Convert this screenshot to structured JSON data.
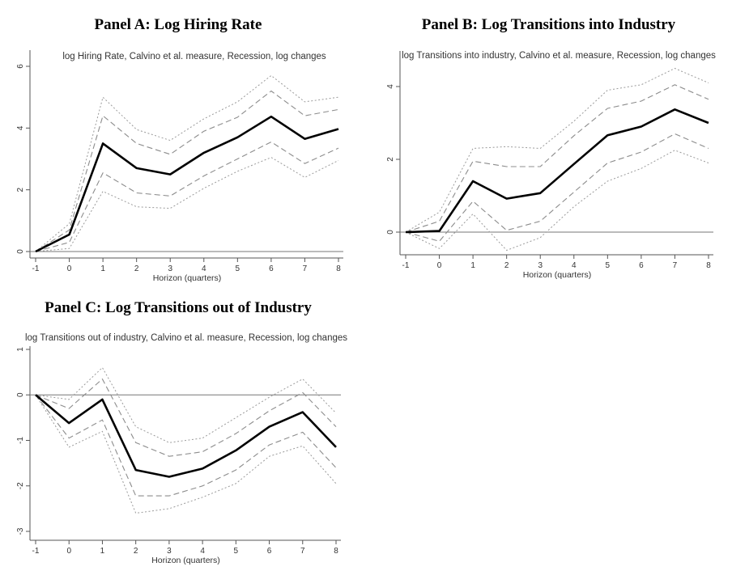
{
  "panel_headings": [
    "Panel A: Log Hiring Rate",
    "Panel B: Log Transitions into Industry",
    "Panel C: Log Transitions out of Industry"
  ],
  "chart_data": [
    {
      "type": "line",
      "title": "log Hiring Rate, Calvino et al. measure, Recession, log changes",
      "xlabel": "Horizon (quarters)",
      "ylabel": "",
      "x": [
        -1,
        0,
        1,
        2,
        3,
        4,
        5,
        6,
        7,
        8
      ],
      "xticks": [
        "-1",
        "0",
        "1",
        "2",
        "3",
        "4",
        "5",
        "6",
        "7",
        "8"
      ],
      "yticks": [
        0,
        2,
        4,
        6
      ],
      "ylim": [
        -0.1,
        6.3
      ],
      "reference_line_y": 0,
      "legend": "none",
      "series": [
        {
          "role": "upper_outer_band",
          "style": "dotted",
          "values": [
            0.0,
            0.9,
            5.0,
            3.95,
            3.6,
            4.3,
            4.85,
            5.7,
            4.85,
            5.0
          ]
        },
        {
          "role": "upper_inner_band",
          "style": "dashed",
          "values": [
            0.0,
            0.7,
            4.4,
            3.5,
            3.15,
            3.9,
            4.35,
            5.2,
            4.4,
            4.6
          ]
        },
        {
          "role": "point_estimate",
          "style": "solid",
          "values": [
            0.0,
            0.55,
            3.5,
            2.7,
            2.5,
            3.2,
            3.7,
            4.37,
            3.65,
            3.97
          ]
        },
        {
          "role": "lower_inner_band",
          "style": "dashed",
          "values": [
            0.0,
            0.3,
            2.55,
            1.9,
            1.8,
            2.45,
            3.0,
            3.55,
            2.85,
            3.35
          ]
        },
        {
          "role": "lower_outer_band",
          "style": "dotted",
          "values": [
            0.0,
            0.1,
            1.95,
            1.45,
            1.4,
            2.05,
            2.6,
            3.05,
            2.4,
            2.95
          ]
        }
      ]
    },
    {
      "type": "line",
      "title": "log Transitions into industry, Calvino et al. measure, Recession, log changes",
      "xlabel": "Horizon (quarters)",
      "ylabel": "",
      "x": [
        -1,
        0,
        1,
        2,
        3,
        4,
        5,
        6,
        7,
        8
      ],
      "xticks": [
        "-1",
        "0",
        "1",
        "2",
        "3",
        "4",
        "5",
        "6",
        "7",
        "8"
      ],
      "yticks": [
        0,
        2,
        4
      ],
      "ylim": [
        -0.7,
        4.7
      ],
      "reference_line_y": 0,
      "legend": "none",
      "series": [
        {
          "role": "upper_outer_band",
          "style": "dotted",
          "values": [
            0.0,
            0.55,
            2.3,
            2.35,
            2.3,
            3.05,
            3.9,
            4.05,
            4.5,
            4.1
          ]
        },
        {
          "role": "upper_inner_band",
          "style": "dashed",
          "values": [
            0.0,
            0.3,
            1.95,
            1.8,
            1.8,
            2.65,
            3.4,
            3.6,
            4.05,
            3.65
          ]
        },
        {
          "role": "point_estimate",
          "style": "solid",
          "values": [
            0.0,
            0.03,
            1.4,
            0.92,
            1.07,
            1.87,
            2.66,
            2.9,
            3.37,
            3.0
          ]
        },
        {
          "role": "lower_inner_band",
          "style": "dashed",
          "values": [
            0.0,
            -0.25,
            0.85,
            0.05,
            0.3,
            1.1,
            1.9,
            2.2,
            2.7,
            2.3
          ]
        },
        {
          "role": "lower_outer_band",
          "style": "dotted",
          "values": [
            0.0,
            -0.45,
            0.5,
            -0.5,
            -0.15,
            0.7,
            1.4,
            1.75,
            2.25,
            1.9
          ]
        }
      ]
    },
    {
      "type": "line",
      "title": "log Transitions out of industry, Calvino et al. measure, Recession, log changes",
      "xlabel": "Horizon (quarters)",
      "ylabel": "",
      "x": [
        -1,
        0,
        1,
        2,
        3,
        4,
        5,
        6,
        7,
        8
      ],
      "xticks": [
        "-1",
        "0",
        "1",
        "2",
        "3",
        "4",
        "5",
        "6",
        "7",
        "8"
      ],
      "yticks": [
        -3,
        -2,
        -1,
        0,
        1
      ],
      "ylim": [
        -3.1,
        1.1
      ],
      "reference_line_y": 0,
      "legend": "none",
      "series": [
        {
          "role": "upper_outer_band",
          "style": "dotted",
          "values": [
            0.0,
            -0.1,
            0.6,
            -0.7,
            -1.05,
            -0.95,
            -0.5,
            -0.05,
            0.35,
            -0.4
          ]
        },
        {
          "role": "upper_inner_band",
          "style": "dashed",
          "values": [
            0.0,
            -0.3,
            0.35,
            -1.05,
            -1.35,
            -1.25,
            -0.85,
            -0.35,
            0.05,
            -0.7
          ]
        },
        {
          "role": "point_estimate",
          "style": "solid",
          "values": [
            0.0,
            -0.62,
            -0.1,
            -1.65,
            -1.8,
            -1.62,
            -1.22,
            -0.7,
            -0.38,
            -1.15
          ]
        },
        {
          "role": "lower_inner_band",
          "style": "dashed",
          "values": [
            0.0,
            -0.95,
            -0.55,
            -2.22,
            -2.22,
            -2.0,
            -1.65,
            -1.1,
            -0.82,
            -1.6
          ]
        },
        {
          "role": "lower_outer_band",
          "style": "dotted",
          "values": [
            0.0,
            -1.15,
            -0.8,
            -2.6,
            -2.5,
            -2.25,
            -1.95,
            -1.35,
            -1.12,
            -1.95
          ]
        }
      ]
    }
  ]
}
